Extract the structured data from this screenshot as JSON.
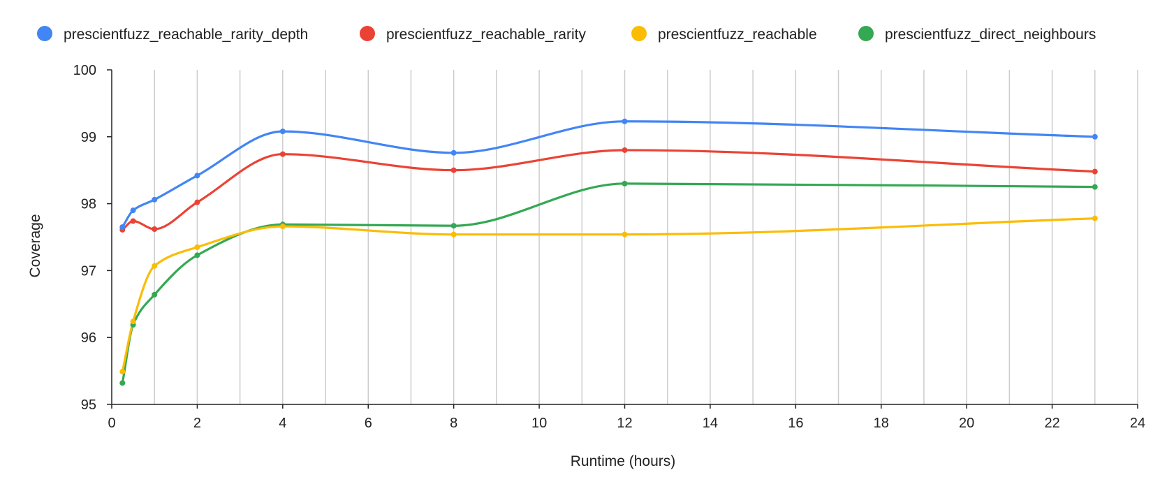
{
  "chart_data": {
    "type": "line",
    "title": "",
    "xlabel": "Runtime (hours)",
    "ylabel": "Coverage",
    "xlim": [
      0,
      24
    ],
    "ylim": [
      95,
      100
    ],
    "x_ticks": [
      "0",
      "2",
      "4",
      "6",
      "8",
      "10",
      "12",
      "14",
      "16",
      "18",
      "20",
      "22",
      "24"
    ],
    "y_ticks": [
      "95",
      "96",
      "97",
      "98",
      "99",
      "100"
    ],
    "grid": "vertical",
    "legend_position": "top",
    "x": [
      0.25,
      0.5,
      1,
      2,
      4,
      8,
      12,
      23
    ],
    "series": [
      {
        "name": "prescientfuzz_reachable_rarity_depth",
        "color": "#4285F4",
        "values": [
          97.65,
          97.9,
          98.06,
          98.42,
          99.08,
          98.76,
          99.23,
          99.0
        ]
      },
      {
        "name": "prescientfuzz_reachable_rarity",
        "color": "#EA4335",
        "values": [
          97.61,
          97.74,
          97.62,
          98.02,
          98.74,
          98.5,
          98.8,
          98.48
        ]
      },
      {
        "name": "prescientfuzz_reachable",
        "color": "#FBBC04",
        "values": [
          95.49,
          96.24,
          97.07,
          97.35,
          97.66,
          97.54,
          97.54,
          97.78
        ]
      },
      {
        "name": "prescientfuzz_direct_neighbours",
        "color": "#34A853",
        "values": [
          95.32,
          96.19,
          96.64,
          97.23,
          97.69,
          97.67,
          98.3,
          98.25
        ]
      }
    ]
  }
}
